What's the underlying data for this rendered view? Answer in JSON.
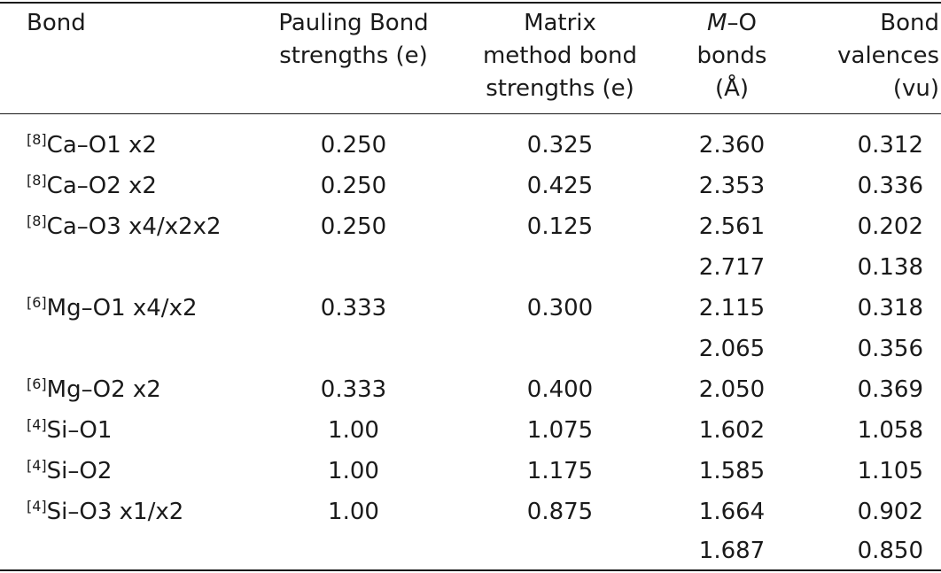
{
  "table": {
    "headers": {
      "bond": "Bond",
      "pauling": [
        "Pauling Bond",
        "strengths (e)"
      ],
      "matrix": [
        "Matrix",
        "method bond",
        "strengths (e)"
      ],
      "mo_italic": "M",
      "mo": [
        "–O",
        "bonds",
        "(Å)"
      ],
      "valences": [
        "Bond",
        "valences",
        "(vu)"
      ]
    },
    "rows": [
      {
        "coord": "[8]",
        "bond": "Ca–O1 x2",
        "pauling": "0.250",
        "matrix": "0.325",
        "mo": "2.360",
        "valence": "0.312"
      },
      {
        "coord": "[8]",
        "bond": "Ca–O2 x2",
        "pauling": "0.250",
        "matrix": "0.425",
        "mo": "2.353",
        "valence": "0.336"
      },
      {
        "coord": "[8]",
        "bond": "Ca–O3 x4/x2x2",
        "pauling": "0.250",
        "matrix": "0.125",
        "mo": "2.561",
        "valence": "0.202"
      },
      {
        "coord": "",
        "bond": "",
        "pauling": "",
        "matrix": "",
        "mo": "2.717",
        "valence": "0.138"
      },
      {
        "coord": "[6]",
        "bond": "Mg–O1 x4/x2",
        "pauling": "0.333",
        "matrix": "0.300",
        "mo": "2.115",
        "valence": "0.318"
      },
      {
        "coord": "",
        "bond": "",
        "pauling": "",
        "matrix": "",
        "mo": "2.065",
        "valence": "0.356"
      },
      {
        "coord": "[6]",
        "bond": "Mg–O2 x2",
        "pauling": "0.333",
        "matrix": "0.400",
        "mo": "2.050",
        "valence": "0.369"
      },
      {
        "coord": "[4]",
        "bond": "Si–O1",
        "pauling": "1.00",
        "matrix": "1.075",
        "mo": "1.602",
        "valence": "1.058"
      },
      {
        "coord": "[4]",
        "bond": "Si–O2",
        "pauling": "1.00",
        "matrix": "1.175",
        "mo": "1.585",
        "valence": "1.105"
      },
      {
        "coord": "[4]",
        "bond": "Si–O3 x1/x2",
        "pauling": "1.00",
        "matrix": "0.875",
        "mo": "1.664",
        "valence": "0.902"
      },
      {
        "coord": "",
        "bond": "",
        "pauling": "",
        "matrix": "",
        "mo": "1.687",
        "valence": "0.850"
      }
    ]
  }
}
